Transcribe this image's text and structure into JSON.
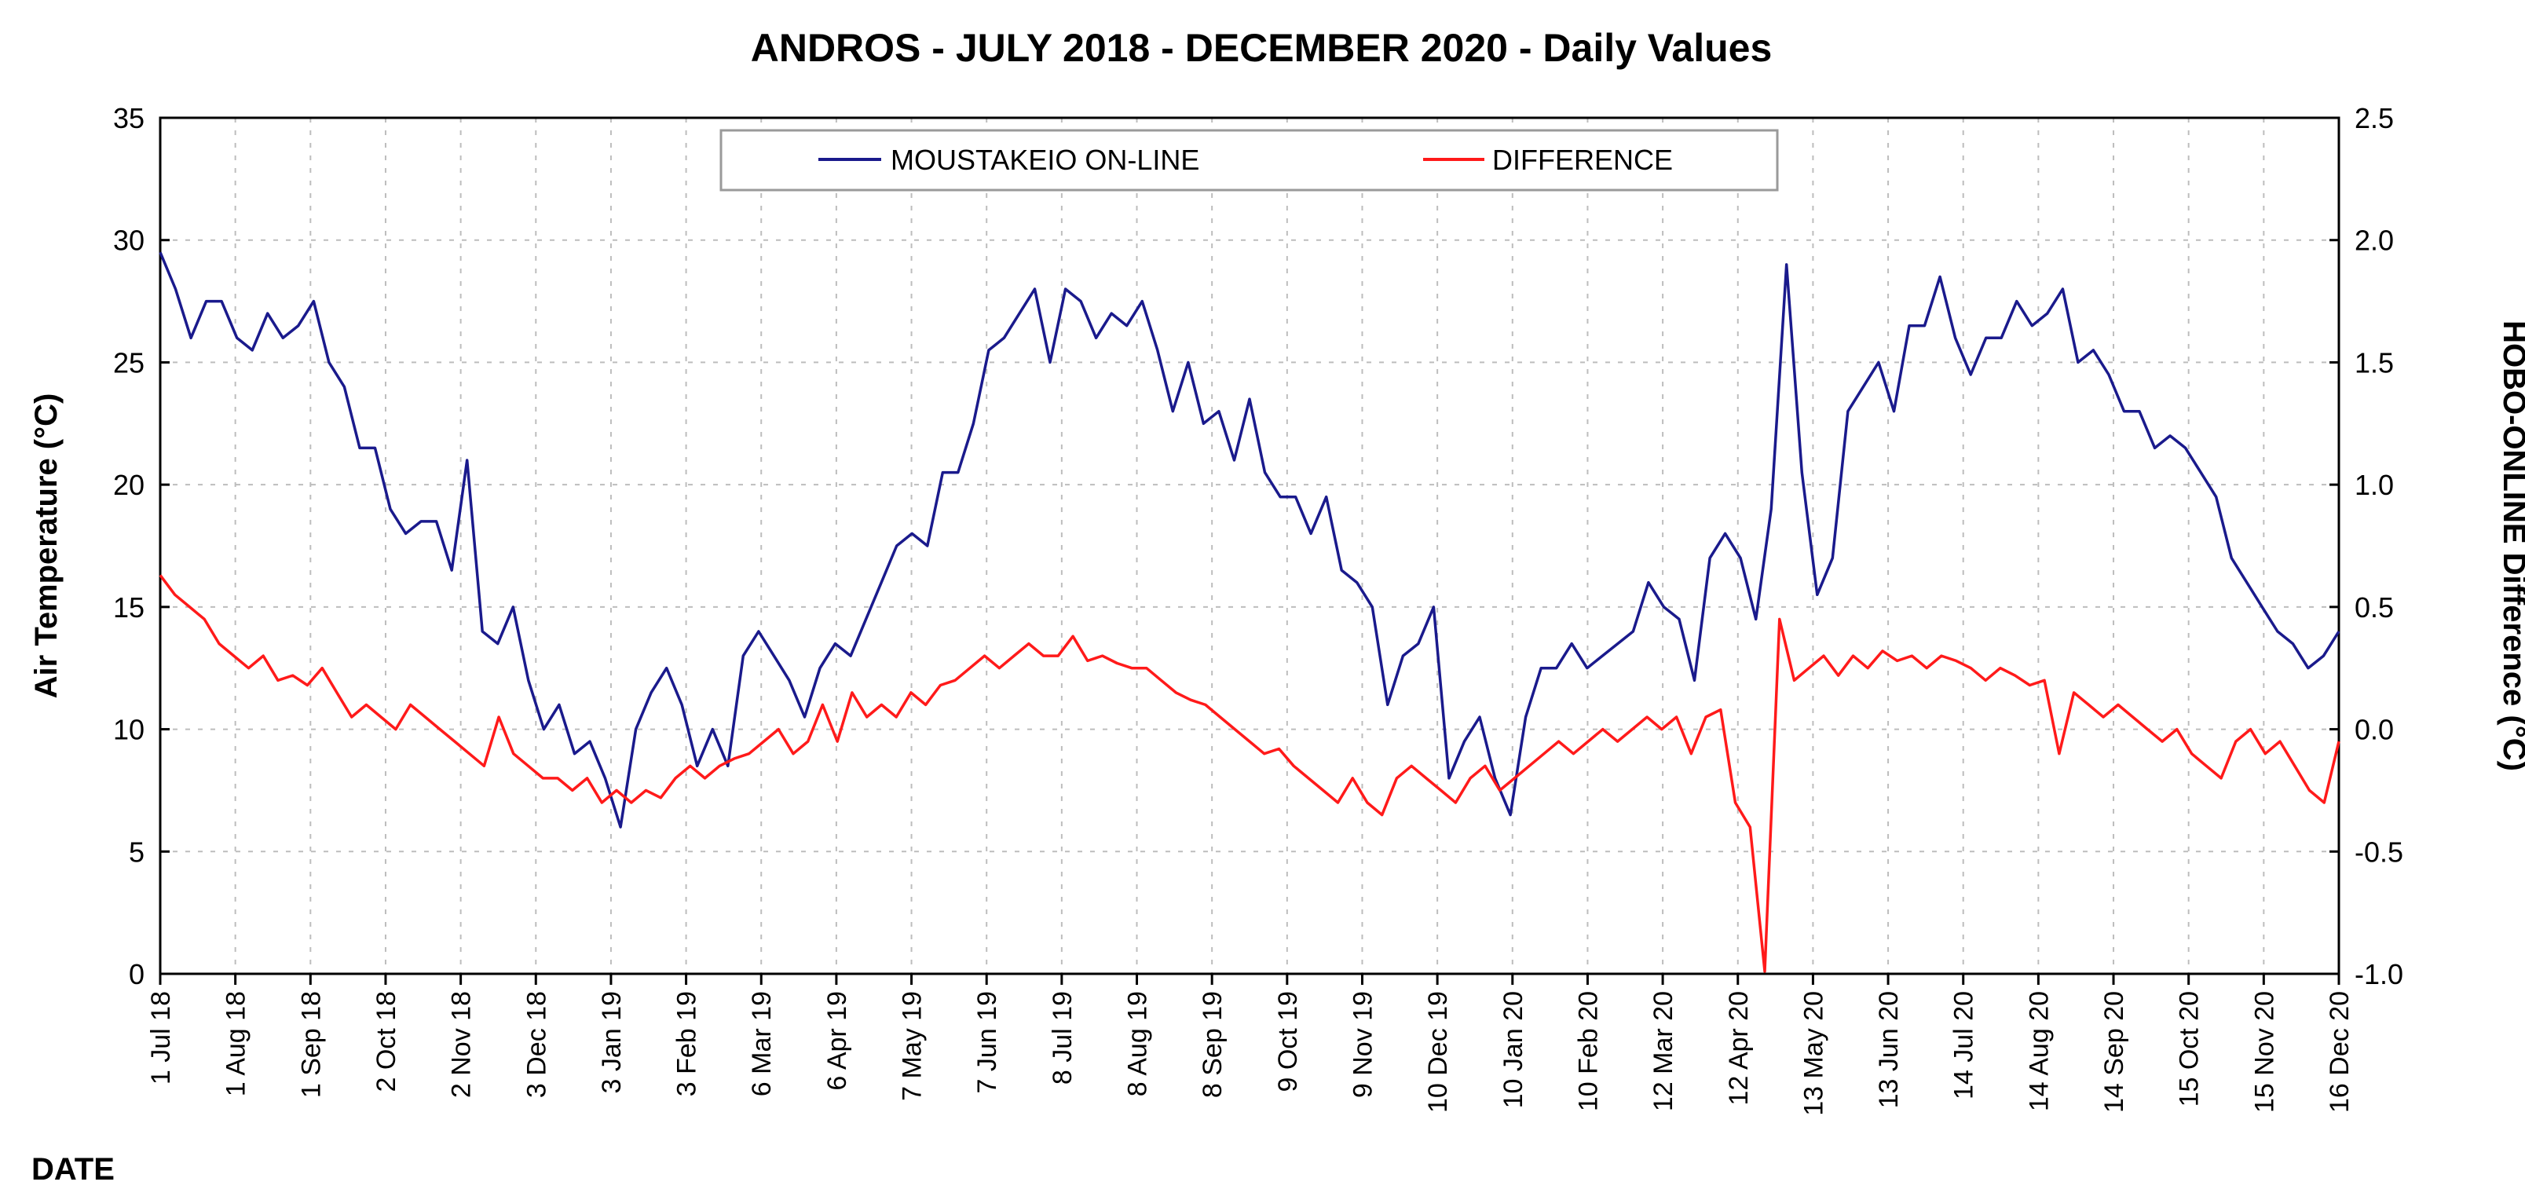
{
  "chart_data": {
    "type": "line",
    "title": "ANDROS - JULY 2018 - DECEMBER 2020 - Daily Values",
    "xlabel": "DATE",
    "ylabel": "Air Temperature (°C)",
    "y2label": "HOBO-ONLINE Difference (°C)",
    "ylim": [
      0,
      35
    ],
    "y2lim": [
      -1.0,
      2.5
    ],
    "yticks": [
      "0",
      "5",
      "10",
      "15",
      "20",
      "25",
      "30",
      "35"
    ],
    "y2ticks": [
      "-1.0",
      "-0.5",
      "0.0",
      "0.5",
      "1.0",
      "1.5",
      "2.0",
      "2.5"
    ],
    "grid": true,
    "legend_position": "top-center",
    "x_tick_labels": [
      "1 Jul 18",
      "1 Aug 18",
      "1 Sep 18",
      "2 Oct 18",
      "2 Nov 18",
      "3 Dec 18",
      "3 Jan 19",
      "3 Feb 19",
      "6 Mar 19",
      "6 Apr 19",
      "7 May 19",
      "7 Jun 19",
      "8 Jul 19",
      "8 Aug 19",
      "8 Sep 19",
      "9 Oct 19",
      "9 Nov 19",
      "10 Dec 19",
      "10 Jan 20",
      "10 Feb 20",
      "12 Mar 20",
      "12 Apr 20",
      "13 May 20",
      "13 Jun 20",
      "14 Jul 20",
      "14 Aug 20",
      "14 Sep 20",
      "15 Oct 20",
      "15 Nov 20",
      "16 Dec 20"
    ],
    "series": [
      {
        "name": "MOUSTAKEIO ON-LINE",
        "axis": "left",
        "color": "#1a1a8c",
        "values": [
          29.5,
          28.0,
          26.0,
          27.5,
          27.5,
          26.0,
          25.5,
          27.0,
          26.0,
          26.5,
          27.5,
          25.0,
          24.0,
          21.5,
          21.5,
          19.0,
          18.0,
          18.5,
          18.5,
          16.5,
          21.0,
          14.0,
          13.5,
          15.0,
          12.0,
          10.0,
          11.0,
          9.0,
          9.5,
          8.0,
          6.0,
          10.0,
          11.5,
          12.5,
          11.0,
          8.5,
          10.0,
          8.5,
          13.0,
          14.0,
          13.0,
          12.0,
          10.5,
          12.5,
          13.5,
          13.0,
          14.5,
          16.0,
          17.5,
          18.0,
          17.5,
          20.5,
          20.5,
          22.5,
          25.5,
          26.0,
          27.0,
          28.0,
          25.0,
          28.0,
          27.5,
          26.0,
          27.0,
          26.5,
          27.5,
          25.5,
          23.0,
          25.0,
          22.5,
          23.0,
          21.0,
          23.5,
          20.5,
          19.5,
          19.5,
          18.0,
          19.5,
          16.5,
          16.0,
          15.0,
          11.0,
          13.0,
          13.5,
          15.0,
          8.0,
          9.5,
          10.5,
          8.0,
          6.5,
          10.5,
          12.5,
          12.5,
          13.5,
          12.5,
          13.0,
          13.5,
          14.0,
          16.0,
          15.0,
          14.5,
          12.0,
          17.0,
          18.0,
          17.0,
          14.5,
          19.0,
          29.0,
          20.5,
          15.5,
          17.0,
          23.0,
          24.0,
          25.0,
          23.0,
          26.5,
          26.5,
          28.5,
          26.0,
          24.5,
          26.0,
          26.0,
          27.5,
          26.5,
          27.0,
          28.0,
          25.0,
          25.5,
          24.5,
          23.0,
          23.0,
          21.5,
          22.0,
          21.5,
          20.5,
          19.5,
          17.0,
          16.0,
          15.0,
          14.0,
          13.5,
          12.5,
          13.0,
          14.0
        ]
      },
      {
        "name": "DIFFERENCE",
        "axis": "right",
        "color": "#ff1a1a",
        "values": [
          0.63,
          0.55,
          0.5,
          0.45,
          0.35,
          0.3,
          0.25,
          0.3,
          0.2,
          0.22,
          0.18,
          0.25,
          0.15,
          0.05,
          0.1,
          0.05,
          0.0,
          0.1,
          0.05,
          0.0,
          -0.05,
          -0.1,
          -0.15,
          0.05,
          -0.1,
          -0.15,
          -0.2,
          -0.2,
          -0.25,
          -0.2,
          -0.3,
          -0.25,
          -0.3,
          -0.25,
          -0.28,
          -0.2,
          -0.15,
          -0.2,
          -0.15,
          -0.12,
          -0.1,
          -0.05,
          0.0,
          -0.1,
          -0.05,
          0.1,
          -0.05,
          0.15,
          0.05,
          0.1,
          0.05,
          0.15,
          0.1,
          0.18,
          0.2,
          0.25,
          0.3,
          0.25,
          0.3,
          0.35,
          0.3,
          0.3,
          0.38,
          0.28,
          0.3,
          0.27,
          0.25,
          0.25,
          0.2,
          0.15,
          0.12,
          0.1,
          0.05,
          0.0,
          -0.05,
          -0.1,
          -0.08,
          -0.15,
          -0.2,
          -0.25,
          -0.3,
          -0.2,
          -0.3,
          -0.35,
          -0.2,
          -0.15,
          -0.2,
          -0.25,
          -0.3,
          -0.2,
          -0.15,
          -0.25,
          -0.2,
          -0.15,
          -0.1,
          -0.05,
          -0.1,
          -0.05,
          0.0,
          -0.05,
          0.0,
          0.05,
          0.0,
          0.05,
          -0.1,
          0.05,
          0.08,
          -0.3,
          -0.4,
          -0.99,
          0.45,
          0.2,
          0.25,
          0.3,
          0.22,
          0.3,
          0.25,
          0.32,
          0.28,
          0.3,
          0.25,
          0.3,
          0.28,
          0.25,
          0.2,
          0.25,
          0.22,
          0.18,
          0.2,
          -0.1,
          0.15,
          0.1,
          0.05,
          0.1,
          0.05,
          0.0,
          -0.05,
          0.0,
          -0.1,
          -0.15,
          -0.2,
          -0.05,
          0.0,
          -0.1,
          -0.05,
          -0.15,
          -0.25,
          -0.3,
          -0.05
        ]
      }
    ]
  }
}
